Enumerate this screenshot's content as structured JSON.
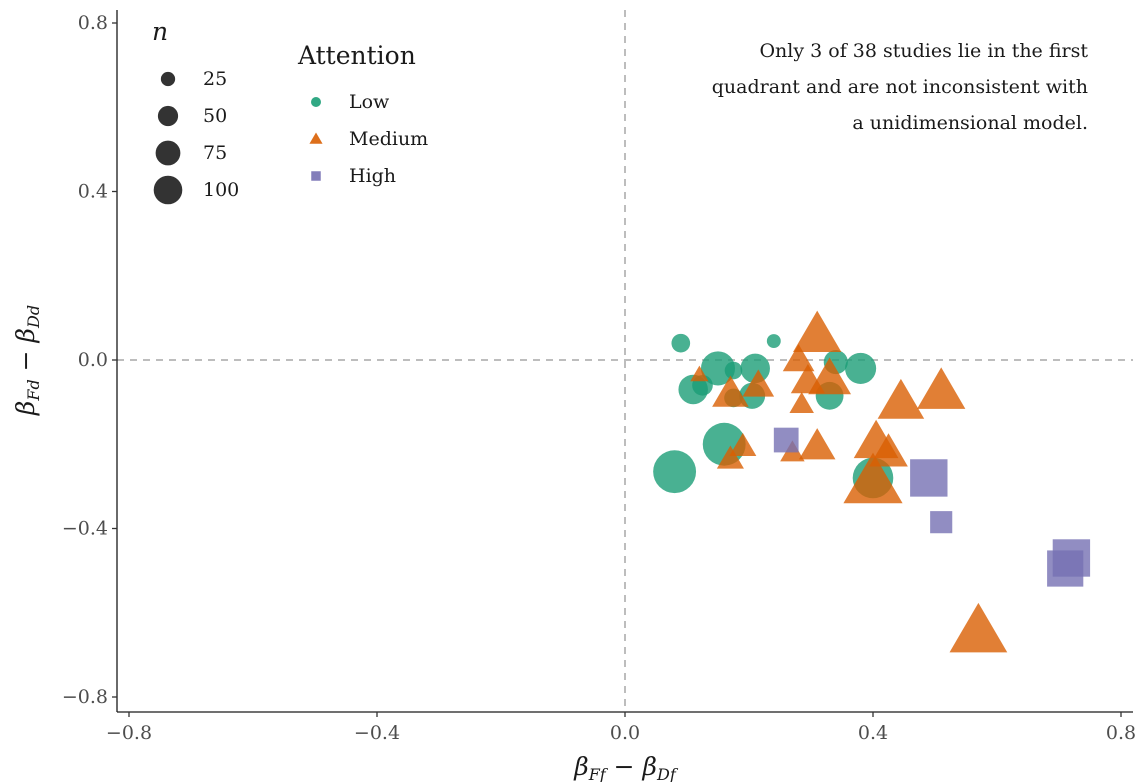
{
  "chart_data": {
    "type": "scatter",
    "xlabel": "βFf − βDf",
    "ylabel": "βFd − βDd",
    "xlim": [
      -0.82,
      0.82
    ],
    "ylim": [
      -0.82,
      0.82
    ],
    "x_ticks": [
      -0.8,
      -0.4,
      0.0,
      0.4,
      0.8
    ],
    "y_ticks": [
      -0.8,
      -0.4,
      0.0,
      0.4,
      0.8
    ],
    "x_tick_labels": [
      "−0.8",
      "−0.4",
      "0.0",
      "0.4",
      "0.8"
    ],
    "y_tick_labels": [
      "−0.8",
      "−0.4",
      "0.0",
      "0.4",
      "0.8"
    ],
    "reference_lines": {
      "x": 0,
      "y": 0,
      "style": "dashed"
    },
    "annotation": [
      "Only 3 of 38 studies lie in the first",
      "quadrant and are not inconsistent with",
      "a unidimensional model."
    ],
    "size_legend": {
      "title": "n",
      "entries": [
        {
          "label": "25",
          "value": 25
        },
        {
          "label": "50",
          "value": 50
        },
        {
          "label": "75",
          "value": 75
        },
        {
          "label": "100",
          "value": 100
        }
      ]
    },
    "color_legend": {
      "title": "Attention",
      "entries": [
        {
          "label": "Low",
          "color": "#1b9e77",
          "shape": "circle"
        },
        {
          "label": "Medium",
          "color": "#d95f02",
          "shape": "triangle"
        },
        {
          "label": "High",
          "color": "#7570b3",
          "shape": "square"
        }
      ]
    },
    "series": [
      {
        "name": "Low",
        "color": "#1b9e77",
        "shape": "circle",
        "points": [
          {
            "x": 0.09,
            "y": 0.04,
            "n": 18
          },
          {
            "x": 0.24,
            "y": 0.045,
            "n": 10
          },
          {
            "x": 0.11,
            "y": -0.07,
            "n": 45
          },
          {
            "x": 0.125,
            "y": -0.06,
            "n": 22
          },
          {
            "x": 0.15,
            "y": -0.02,
            "n": 60
          },
          {
            "x": 0.175,
            "y": -0.025,
            "n": 16
          },
          {
            "x": 0.21,
            "y": -0.02,
            "n": 45
          },
          {
            "x": 0.205,
            "y": -0.085,
            "n": 35
          },
          {
            "x": 0.175,
            "y": -0.09,
            "n": 18
          },
          {
            "x": 0.16,
            "y": -0.2,
            "n": 95
          },
          {
            "x": 0.08,
            "y": -0.265,
            "n": 95
          },
          {
            "x": 0.34,
            "y": -0.005,
            "n": 30
          },
          {
            "x": 0.38,
            "y": -0.02,
            "n": 50
          },
          {
            "x": 0.33,
            "y": -0.085,
            "n": 40
          },
          {
            "x": 0.4,
            "y": -0.28,
            "n": 85
          }
        ]
      },
      {
        "name": "Medium",
        "color": "#d95f02",
        "shape": "triangle",
        "points": [
          {
            "x": 0.31,
            "y": 0.06,
            "n": 70
          },
          {
            "x": 0.28,
            "y": 0.0,
            "n": 30
          },
          {
            "x": 0.295,
            "y": -0.05,
            "n": 35
          },
          {
            "x": 0.33,
            "y": -0.045,
            "n": 55
          },
          {
            "x": 0.285,
            "y": -0.105,
            "n": 18
          },
          {
            "x": 0.12,
            "y": -0.035,
            "n": 10
          },
          {
            "x": 0.17,
            "y": -0.08,
            "n": 40
          },
          {
            "x": 0.215,
            "y": -0.06,
            "n": 30
          },
          {
            "x": 0.31,
            "y": -0.205,
            "n": 40
          },
          {
            "x": 0.27,
            "y": -0.22,
            "n": 18
          },
          {
            "x": 0.19,
            "y": -0.205,
            "n": 22
          },
          {
            "x": 0.17,
            "y": -0.235,
            "n": 22
          },
          {
            "x": 0.405,
            "y": -0.195,
            "n": 60
          },
          {
            "x": 0.425,
            "y": -0.22,
            "n": 45
          },
          {
            "x": 0.445,
            "y": -0.1,
            "n": 65
          },
          {
            "x": 0.51,
            "y": -0.075,
            "n": 70
          },
          {
            "x": 0.4,
            "y": -0.29,
            "n": 105
          },
          {
            "x": 0.57,
            "y": -0.645,
            "n": 100
          }
        ]
      },
      {
        "name": "High",
        "color": "#7570b3",
        "shape": "square",
        "points": [
          {
            "x": 0.26,
            "y": -0.19,
            "n": 35
          },
          {
            "x": 0.49,
            "y": -0.28,
            "n": 80
          },
          {
            "x": 0.51,
            "y": -0.385,
            "n": 28
          },
          {
            "x": 0.72,
            "y": -0.47,
            "n": 80
          },
          {
            "x": 0.71,
            "y": -0.495,
            "n": 75
          }
        ]
      }
    ]
  }
}
